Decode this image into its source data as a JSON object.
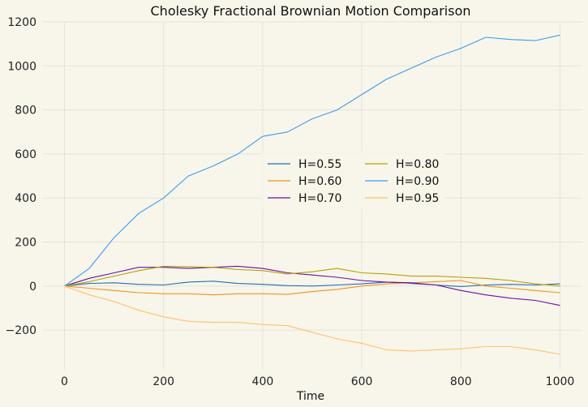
{
  "chart_data": {
    "type": "line",
    "title": "Cholesky Fractional Brownian Motion Comparison",
    "xlabel": "Time",
    "ylabel": "",
    "xlim": [
      -45,
      1045
    ],
    "ylim": [
      -380,
      1200
    ],
    "xticks": [
      0,
      200,
      400,
      600,
      800,
      1000
    ],
    "yticks": [
      -200,
      0,
      200,
      400,
      600,
      800,
      1000,
      1200
    ],
    "grid": true,
    "legend_position": "center",
    "legend_columns": 2,
    "series": [
      {
        "name": "H=0.55",
        "color": "#1f6fb5",
        "x": [
          0,
          50,
          100,
          150,
          200,
          250,
          300,
          350,
          400,
          450,
          500,
          550,
          600,
          650,
          700,
          750,
          800,
          850,
          900,
          950,
          1000
        ],
        "y": [
          0,
          12,
          15,
          8,
          5,
          18,
          22,
          12,
          8,
          2,
          0,
          5,
          10,
          18,
          12,
          5,
          -2,
          5,
          8,
          5,
          10
        ]
      },
      {
        "name": "H=0.60",
        "color": "#f0921f",
        "x": [
          0,
          50,
          100,
          150,
          200,
          250,
          300,
          350,
          400,
          450,
          500,
          550,
          600,
          650,
          700,
          750,
          800,
          850,
          900,
          950,
          1000
        ],
        "y": [
          0,
          -10,
          -20,
          -30,
          -35,
          -35,
          -40,
          -35,
          -35,
          -38,
          -25,
          -15,
          0,
          10,
          15,
          20,
          25,
          0,
          -10,
          -20,
          -30
        ]
      },
      {
        "name": "H=0.70",
        "color": "#6a0dad",
        "x": [
          0,
          50,
          100,
          150,
          200,
          250,
          300,
          350,
          400,
          450,
          500,
          550,
          600,
          650,
          700,
          750,
          800,
          850,
          900,
          950,
          1000
        ],
        "y": [
          0,
          35,
          60,
          85,
          85,
          80,
          85,
          90,
          80,
          60,
          50,
          40,
          25,
          18,
          15,
          5,
          -20,
          -40,
          -55,
          -65,
          -88
        ]
      },
      {
        "name": "H=0.80",
        "color": "#b8a000",
        "x": [
          0,
          50,
          100,
          150,
          200,
          250,
          300,
          350,
          400,
          450,
          500,
          550,
          600,
          650,
          700,
          750,
          800,
          850,
          900,
          950,
          1000
        ],
        "y": [
          0,
          20,
          45,
          70,
          90,
          88,
          85,
          75,
          70,
          55,
          65,
          80,
          60,
          55,
          45,
          45,
          40,
          35,
          25,
          10,
          0
        ]
      },
      {
        "name": "H=0.90",
        "color": "#3b9bf0",
        "x": [
          0,
          50,
          100,
          150,
          200,
          250,
          300,
          350,
          400,
          450,
          500,
          550,
          600,
          650,
          700,
          750,
          800,
          850,
          900,
          950,
          1000
        ],
        "y": [
          0,
          80,
          220,
          330,
          400,
          500,
          545,
          600,
          680,
          700,
          760,
          800,
          870,
          940,
          990,
          1040,
          1080,
          1130,
          1120,
          1115,
          1140
        ]
      },
      {
        "name": "H=0.95",
        "color": "#ffc070",
        "x": [
          0,
          50,
          100,
          150,
          200,
          250,
          300,
          350,
          400,
          450,
          500,
          550,
          600,
          650,
          700,
          750,
          800,
          850,
          900,
          950,
          1000
        ],
        "y": [
          0,
          -40,
          -70,
          -110,
          -140,
          -160,
          -165,
          -165,
          -175,
          -180,
          -210,
          -240,
          -260,
          -290,
          -295,
          -290,
          -285,
          -275,
          -275,
          -290,
          -310
        ]
      }
    ]
  }
}
